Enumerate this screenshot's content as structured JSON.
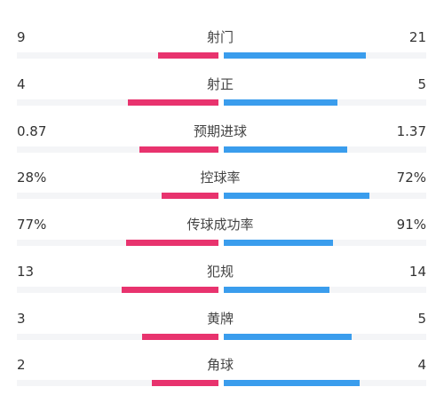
{
  "colors": {
    "home_bar": "#e8336e",
    "away_bar": "#3a9ded",
    "track": "#f4f5f7",
    "text": "#333333"
  },
  "stats": [
    {
      "label": "射门",
      "home": "9",
      "away": "21",
      "home_fraction": 0.3,
      "away_fraction": 0.7
    },
    {
      "label": "射正",
      "home": "4",
      "away": "5",
      "home_fraction": 0.45,
      "away_fraction": 0.56
    },
    {
      "label": "预期进球",
      "home": "0.87",
      "away": "1.37",
      "home_fraction": 0.39,
      "away_fraction": 0.61
    },
    {
      "label": "控球率",
      "home": "28%",
      "away": "72%",
      "home_fraction": 0.28,
      "away_fraction": 0.72
    },
    {
      "label": "传球成功率",
      "home": "77%",
      "away": "91%",
      "home_fraction": 0.46,
      "away_fraction": 0.54
    },
    {
      "label": "犯规",
      "home": "13",
      "away": "14",
      "home_fraction": 0.48,
      "away_fraction": 0.52
    },
    {
      "label": "黄牌",
      "home": "3",
      "away": "5",
      "home_fraction": 0.38,
      "away_fraction": 0.63
    },
    {
      "label": "角球",
      "home": "2",
      "away": "4",
      "home_fraction": 0.33,
      "away_fraction": 0.67
    }
  ]
}
